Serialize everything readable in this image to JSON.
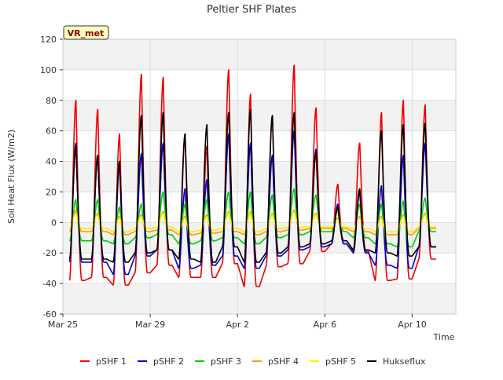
{
  "chart_data": {
    "type": "line",
    "title": "Peltier SHF Plates",
    "xlabel": "Time",
    "ylabel": "Soil Heat Flux (W/m2)",
    "ylim": [
      -60,
      120
    ],
    "xlim": [
      0,
      18
    ],
    "yticks": [
      -60,
      -40,
      -20,
      0,
      20,
      40,
      60,
      80,
      100,
      120
    ],
    "xticks": [
      {
        "value": 0,
        "label": "Mar 25"
      },
      {
        "value": 4,
        "label": "Mar 29"
      },
      {
        "value": 8,
        "label": "Apr 2"
      },
      {
        "value": 12,
        "label": "Apr 6"
      },
      {
        "value": 16,
        "label": "Apr 10"
      }
    ],
    "grid": true,
    "legend_position": "bottom",
    "annotation": "VR_met",
    "daily_peak_offset": 0.6,
    "series": [
      {
        "name": "pSHF 1",
        "color": "#ee0000",
        "start": 0.3,
        "end": 17.1,
        "peaks": [
          80,
          74,
          58,
          97,
          95,
          58,
          50,
          100,
          84,
          70,
          103,
          75,
          25,
          52,
          72,
          80,
          77
        ],
        "troughs": [
          -38,
          -36,
          -41,
          -33,
          -28,
          -36,
          -36,
          -27,
          -42,
          -29,
          -27,
          -19,
          -14,
          -19,
          -38,
          -37,
          -24
        ]
      },
      {
        "name": "pSHF 2",
        "color": "#0000cc",
        "start": 0.3,
        "end": 17.1,
        "peaks": [
          52,
          44,
          38,
          45,
          52,
          22,
          28,
          58,
          52,
          44,
          60,
          48,
          12,
          20,
          24,
          44,
          52
        ],
        "troughs": [
          -26,
          -26,
          -34,
          -22,
          -18,
          -30,
          -28,
          -22,
          -30,
          -22,
          -18,
          -16,
          -14,
          -20,
          -28,
          -30,
          -16
        ]
      },
      {
        "name": "pSHF 3",
        "color": "#00cc00",
        "start": 0.3,
        "end": 17.1,
        "peaks": [
          15,
          15,
          10,
          12,
          20,
          12,
          15,
          20,
          20,
          18,
          22,
          18,
          8,
          12,
          12,
          14,
          16
        ],
        "troughs": [
          -12,
          -12,
          -14,
          -10,
          -8,
          -14,
          -12,
          -10,
          -14,
          -10,
          -8,
          -6,
          -6,
          -10,
          -14,
          -16,
          -6
        ]
      },
      {
        "name": "pSHF 4",
        "color": "#ff9900",
        "start": 0.3,
        "end": 17.1,
        "peaks": [
          8,
          6,
          4,
          5,
          7,
          4,
          5,
          7,
          7,
          6,
          8,
          6,
          3,
          4,
          4,
          5,
          6
        ],
        "troughs": [
          -6,
          -6,
          -8,
          -6,
          -5,
          -8,
          -7,
          -6,
          -8,
          -6,
          -5,
          -4,
          -4,
          -6,
          -8,
          -8,
          -4
        ]
      },
      {
        "name": "pSHF 5",
        "color": "#ffee00",
        "start": 0.3,
        "end": 17.1,
        "peaks": [
          6,
          5,
          3,
          4,
          6,
          3,
          4,
          6,
          6,
          5,
          7,
          5,
          2,
          3,
          3,
          4,
          5
        ],
        "troughs": [
          -4,
          -4,
          -6,
          -4,
          -3,
          -6,
          -5,
          -4,
          -6,
          -4,
          -3,
          -3,
          -3,
          -4,
          -6,
          -6,
          -3
        ]
      },
      {
        "name": "Hukseflux",
        "color": "#000000",
        "start": 0.3,
        "end": 17.1,
        "peaks": [
          50,
          44,
          40,
          70,
          72,
          58,
          64,
          72,
          74,
          70,
          72,
          46,
          10,
          22,
          60,
          64,
          65
        ],
        "troughs": [
          -24,
          -24,
          -26,
          -20,
          -18,
          -24,
          -26,
          -16,
          -26,
          -20,
          -16,
          -14,
          -12,
          -18,
          -20,
          -22,
          -16
        ]
      }
    ]
  }
}
